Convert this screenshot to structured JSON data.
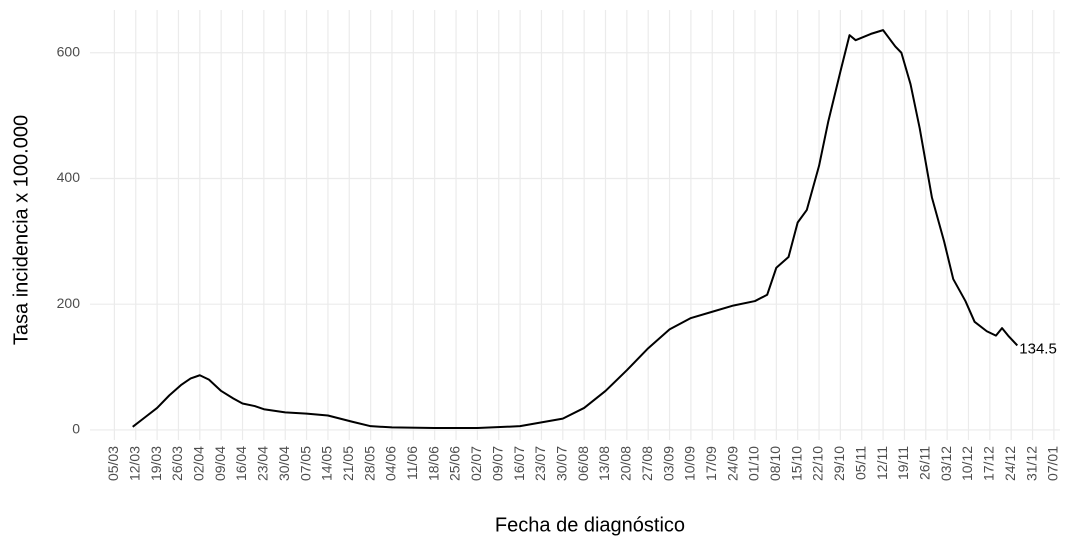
{
  "chart_data": {
    "type": "line",
    "xlabel": "Fecha de diagnóstico",
    "ylabel": "Tasa incidencia x 100.000",
    "xlim": [
      "26/02",
      "09/01"
    ],
    "xticks": [
      "05/03",
      "12/03",
      "19/03",
      "26/03",
      "02/04",
      "09/04",
      "16/04",
      "23/04",
      "30/04",
      "07/05",
      "14/05",
      "21/05",
      "28/05",
      "04/06",
      "11/06",
      "18/06",
      "25/06",
      "02/07",
      "09/07",
      "16/07",
      "23/07",
      "30/07",
      "06/08",
      "13/08",
      "20/08",
      "27/08",
      "03/09",
      "10/09",
      "17/09",
      "24/09",
      "01/10",
      "08/10",
      "15/10",
      "22/10",
      "29/10",
      "05/11",
      "12/11",
      "19/11",
      "26/11",
      "03/12",
      "10/12",
      "17/12",
      "24/12",
      "31/12",
      "07/01"
    ],
    "ylim": [
      -16,
      668
    ],
    "yticks": [
      0,
      200,
      400,
      600
    ],
    "grid": true,
    "x": [
      "11/03",
      "15/03",
      "19/03",
      "23/03",
      "27/03",
      "30/03",
      "02/04",
      "05/04",
      "09/04",
      "13/04",
      "16/04",
      "20/04",
      "23/04",
      "30/04",
      "07/05",
      "14/05",
      "18/05",
      "22/05",
      "28/05",
      "04/06",
      "18/06",
      "02/07",
      "16/07",
      "23/07",
      "30/07",
      "06/08",
      "13/08",
      "20/08",
      "27/08",
      "03/09",
      "10/09",
      "17/09",
      "24/09",
      "01/10",
      "05/10",
      "08/10",
      "12/10",
      "15/10",
      "18/10",
      "22/10",
      "25/10",
      "29/10",
      "01/11",
      "03/11",
      "08/11",
      "12/11",
      "16/11",
      "18/11",
      "21/11",
      "24/11",
      "28/11",
      "02/12",
      "05/12",
      "09/12",
      "12/12",
      "16/12",
      "19/12",
      "21/12",
      "23/12",
      "26/12"
    ],
    "series": [
      {
        "name": "Tasa",
        "color": "#000000",
        "values": [
          5,
          20,
          35,
          55,
          72,
          82,
          87,
          80,
          62,
          50,
          42,
          38,
          33,
          28,
          26,
          23,
          18,
          13,
          6,
          4,
          3,
          3,
          6,
          12,
          18,
          35,
          62,
          95,
          130,
          160,
          178,
          188,
          198,
          205,
          215,
          258,
          275,
          330,
          350,
          420,
          490,
          570,
          628,
          620,
          630,
          636,
          610,
          600,
          550,
          480,
          370,
          300,
          240,
          205,
          172,
          157,
          150,
          162,
          150,
          134.5
        ]
      }
    ],
    "value_labels": {
      "59": "134.5"
    }
  }
}
